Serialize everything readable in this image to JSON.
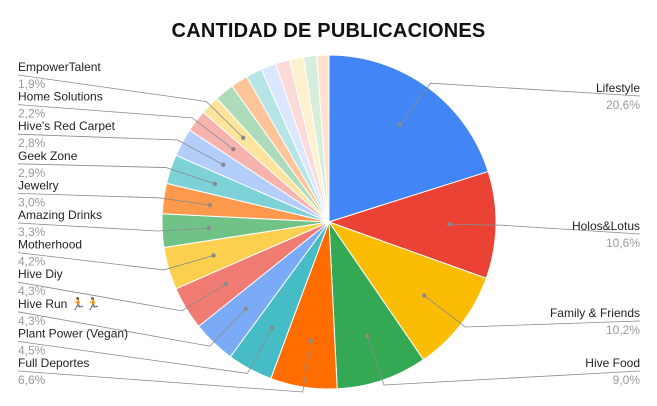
{
  "chart_data": {
    "type": "pie",
    "title": "CANTIDAD DE PUBLICACIONES",
    "slices": [
      {
        "name": "Lifestyle",
        "value": 20.6,
        "label": "20,6%",
        "color": "#4285f4"
      },
      {
        "name": "Holos&Lotus",
        "value": 10.6,
        "label": "10,6%",
        "color": "#ea4335"
      },
      {
        "name": "Family & Friends",
        "value": 10.2,
        "label": "10,2%",
        "color": "#fbbc04"
      },
      {
        "name": "Hive Food",
        "value": 9.0,
        "label": "9,0%",
        "color": "#34a853"
      },
      {
        "name": "Full Deportes",
        "value": 6.6,
        "label": "6,6%",
        "color": "#ff6d01"
      },
      {
        "name": "Plant Power (Vegan)",
        "value": 4.5,
        "label": "4,5%",
        "color": "#46bdc6"
      },
      {
        "name": "Hive Run 🏃🏃",
        "value": 4.3,
        "label": "4,3%",
        "color": "#7baaf7"
      },
      {
        "name": "Hive Diy",
        "value": 4.3,
        "label": "4,3%",
        "color": "#f07b72"
      },
      {
        "name": "Motherhood",
        "value": 4.2,
        "label": "4,2%",
        "color": "#fcd04f"
      },
      {
        "name": "Amazing Drinks",
        "value": 3.3,
        "label": "3,3%",
        "color": "#71c287"
      },
      {
        "name": "Jewelry",
        "value": 3.0,
        "label": "3,0%",
        "color": "#ff994d"
      },
      {
        "name": "Geek Zone",
        "value": 2.9,
        "label": "2,9%",
        "color": "#7ed1d7"
      },
      {
        "name": "Hive's Red Carpet",
        "value": 2.8,
        "label": "2,8%",
        "color": "#b3cefb"
      },
      {
        "name": "Home Solutions",
        "value": 2.2,
        "label": "2,2%",
        "color": "#f7b4ae"
      },
      {
        "name": "EmpowerTalent",
        "value": 1.9,
        "label": "1,9%",
        "color": "#fde49b"
      },
      {
        "name": "",
        "value": 1.9,
        "label": "",
        "color": "#aedcba"
      },
      {
        "name": "",
        "value": 1.7,
        "label": "",
        "color": "#ffc599"
      },
      {
        "name": "",
        "value": 1.6,
        "label": "",
        "color": "#b6e5e8"
      },
      {
        "name": "",
        "value": 1.5,
        "label": "",
        "color": "#dbe7fd"
      },
      {
        "name": "",
        "value": 1.4,
        "label": "",
        "color": "#fbdad7"
      },
      {
        "name": "",
        "value": 1.4,
        "label": "",
        "color": "#fef1cd"
      },
      {
        "name": "",
        "value": 1.3,
        "label": "",
        "color": "#d7eedd"
      },
      {
        "name": "",
        "value": 1.2,
        "label": "",
        "color": "#ffe2cc"
      }
    ]
  }
}
